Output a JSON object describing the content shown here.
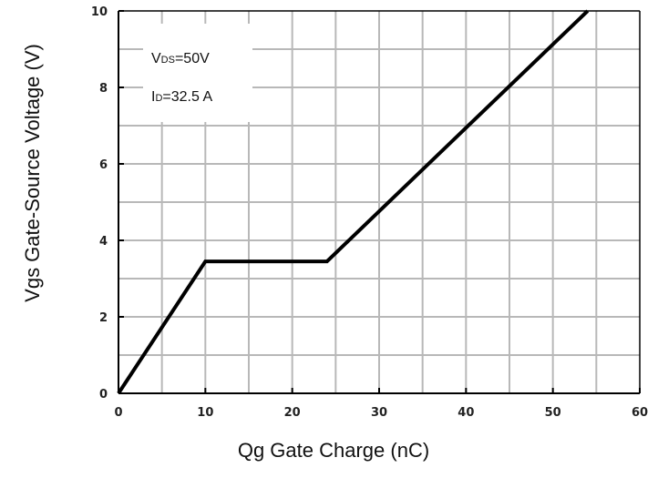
{
  "chart_data": {
    "type": "line",
    "title": "",
    "xlabel": "Qg Gate Charge (nC)",
    "ylabel": "Vgs Gate-Source Voltage (V)",
    "xlim": [
      0,
      60
    ],
    "ylim": [
      0,
      10
    ],
    "x_ticks": [
      "0",
      "10",
      "20",
      "30",
      "40",
      "50",
      "60"
    ],
    "y_ticks": [
      "0",
      "2",
      "4",
      "6",
      "8",
      "10"
    ],
    "grid": true,
    "series": [
      {
        "x": [
          0,
          10,
          24,
          54
        ],
        "y": [
          0,
          3.45,
          3.45,
          10
        ]
      }
    ],
    "annotations": [
      {
        "main": "V",
        "sub": "DS",
        "rest": "=50V"
      },
      {
        "main": "I",
        "sub": "D",
        "rest": "=32.5 A"
      }
    ],
    "colors": {
      "line": "#000000",
      "grid": "#b8b8b8",
      "axis": "#000000"
    }
  }
}
